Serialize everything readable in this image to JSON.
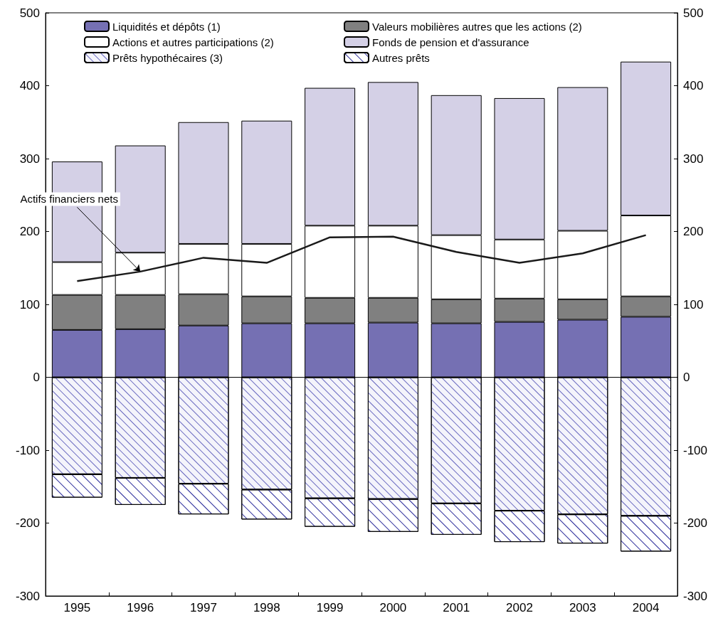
{
  "chart_data": {
    "type": "bar",
    "stacked": true,
    "categories": [
      "1995",
      "1996",
      "1997",
      "1998",
      "1999",
      "2000",
      "2001",
      "2002",
      "2003",
      "2004"
    ],
    "series": [
      {
        "name": "Liquidités et dépôts (1)",
        "color": "#7570b3",
        "values": [
          65,
          66,
          71,
          74,
          74,
          75,
          74,
          76,
          79,
          83
        ]
      },
      {
        "name": "Valeurs mobilières autres que les actions (2)",
        "color": "#808080",
        "values": [
          48,
          47,
          43,
          37,
          35,
          34,
          33,
          32,
          28,
          28
        ]
      },
      {
        "name": "Actions et autres participations (2)",
        "color": "#ffffff",
        "values": [
          45,
          58,
          69,
          72,
          99,
          99,
          88,
          81,
          94,
          111
        ]
      },
      {
        "name": "Fonds de pension et d'assurance",
        "color": "#d4d0e6",
        "values": [
          138,
          147,
          167,
          169,
          189,
          197,
          192,
          194,
          197,
          211
        ]
      },
      {
        "name": "Prêts hypothécaires (3)",
        "color": "#f4f4fb",
        "values": [
          -133,
          -138,
          -146,
          -154,
          -166,
          -167,
          -173,
          -183,
          -188,
          -190
        ]
      },
      {
        "name": "Autres prêts",
        "color": "#ffffff",
        "values": [
          -32,
          -37,
          -42,
          -41,
          -39,
          -45,
          -43,
          -43,
          -40,
          -49
        ]
      },
      {
        "type": "line",
        "color": "#1a1a1a",
        "values": [
          132,
          145,
          164,
          157,
          192,
          193,
          172,
          157,
          170,
          195
        ]
      }
    ],
    "ylim": [
      -300,
      500
    ],
    "yticks": [
      -300,
      -200,
      -100,
      0,
      100,
      200,
      300,
      400,
      500
    ],
    "y2lim": [
      -300,
      500
    ],
    "y2ticks": [
      -300,
      -200,
      -100,
      0,
      100,
      200,
      300,
      400,
      500
    ],
    "ref_lines": [
      {
        "axis": "y",
        "value": 0
      }
    ],
    "annotations": [
      {
        "text": "Actifs financiers nets",
        "x": "1996",
        "y": 145
      }
    ],
    "grid": false,
    "legend": "top",
    "marker": "none",
    "line_style": "solid"
  }
}
